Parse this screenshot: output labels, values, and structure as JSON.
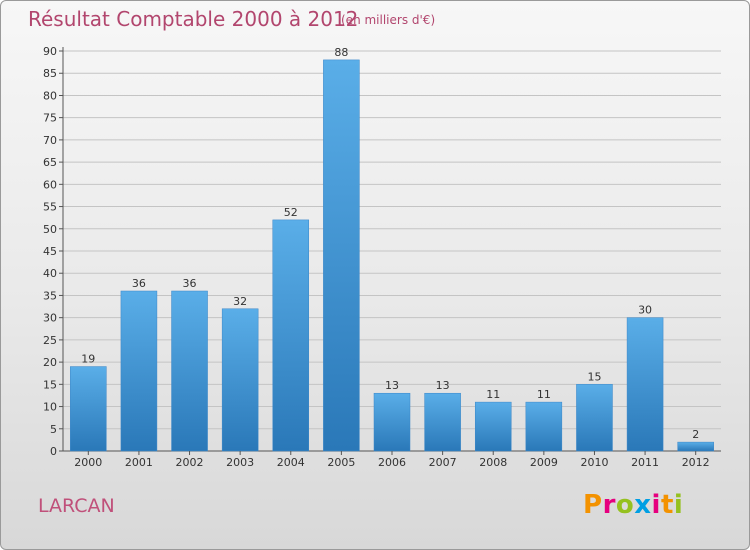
{
  "title": "Résultat Comptable 2000 à 2012",
  "subtitle": "(en milliers d'€)",
  "commune": "LARCAN",
  "logo": {
    "letters": [
      "P",
      "r",
      "o",
      "x",
      "i",
      "t",
      "i"
    ],
    "colors": [
      "#f39200",
      "#e6007e",
      "#95c11f",
      "#009fe3",
      "#e6007e",
      "#f39200",
      "#95c11f"
    ]
  },
  "colors": {
    "bar_light": "#5aaee8",
    "bar_dark": "#2a78b8",
    "title": "#b2466e"
  },
  "chart_data": {
    "type": "bar",
    "title": "Résultat Comptable 2000 à 2012",
    "ylabel": "",
    "xlabel": "",
    "categories": [
      "2000",
      "2001",
      "2002",
      "2003",
      "2004",
      "2005",
      "2006",
      "2007",
      "2008",
      "2009",
      "2010",
      "2011",
      "2012"
    ],
    "values": [
      19,
      36,
      36,
      32,
      52,
      88,
      13,
      13,
      11,
      11,
      15,
      30,
      2
    ],
    "ylim": [
      0,
      90
    ],
    "yticks": [
      0,
      5,
      10,
      15,
      20,
      25,
      30,
      35,
      40,
      45,
      50,
      55,
      60,
      65,
      70,
      75,
      80,
      85,
      90
    ],
    "grid": true
  }
}
